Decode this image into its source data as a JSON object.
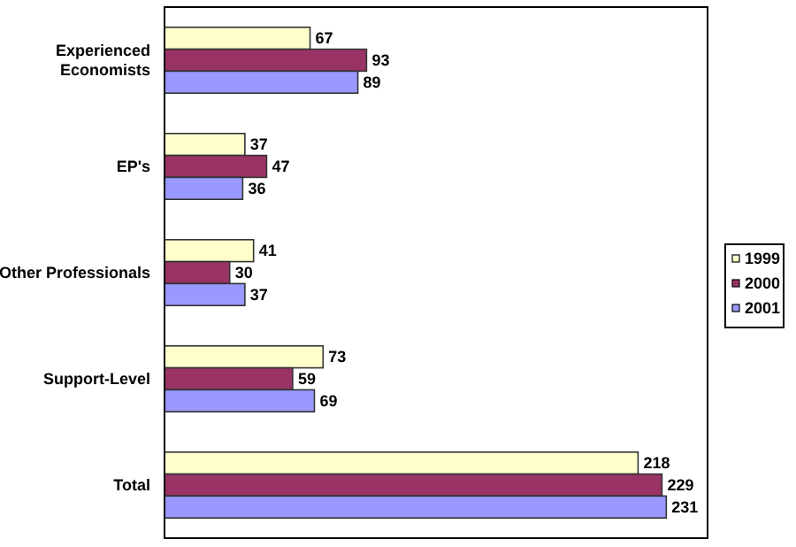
{
  "chart_data": {
    "type": "bar",
    "orientation": "horizontal",
    "categories": [
      "Experienced Economists",
      "EP's",
      "Other Professionals",
      "Support-Level",
      "Total"
    ],
    "series": [
      {
        "name": "1999",
        "color": "#ffffcc",
        "values": [
          67,
          37,
          41,
          73,
          218
        ]
      },
      {
        "name": "2000",
        "color": "#993366",
        "values": [
          93,
          47,
          30,
          59,
          229
        ]
      },
      {
        "name": "2001",
        "color": "#9999ff",
        "values": [
          89,
          36,
          37,
          69,
          231
        ]
      }
    ],
    "xlim": [
      0,
      250
    ],
    "data_labels": true,
    "legend": "right"
  }
}
